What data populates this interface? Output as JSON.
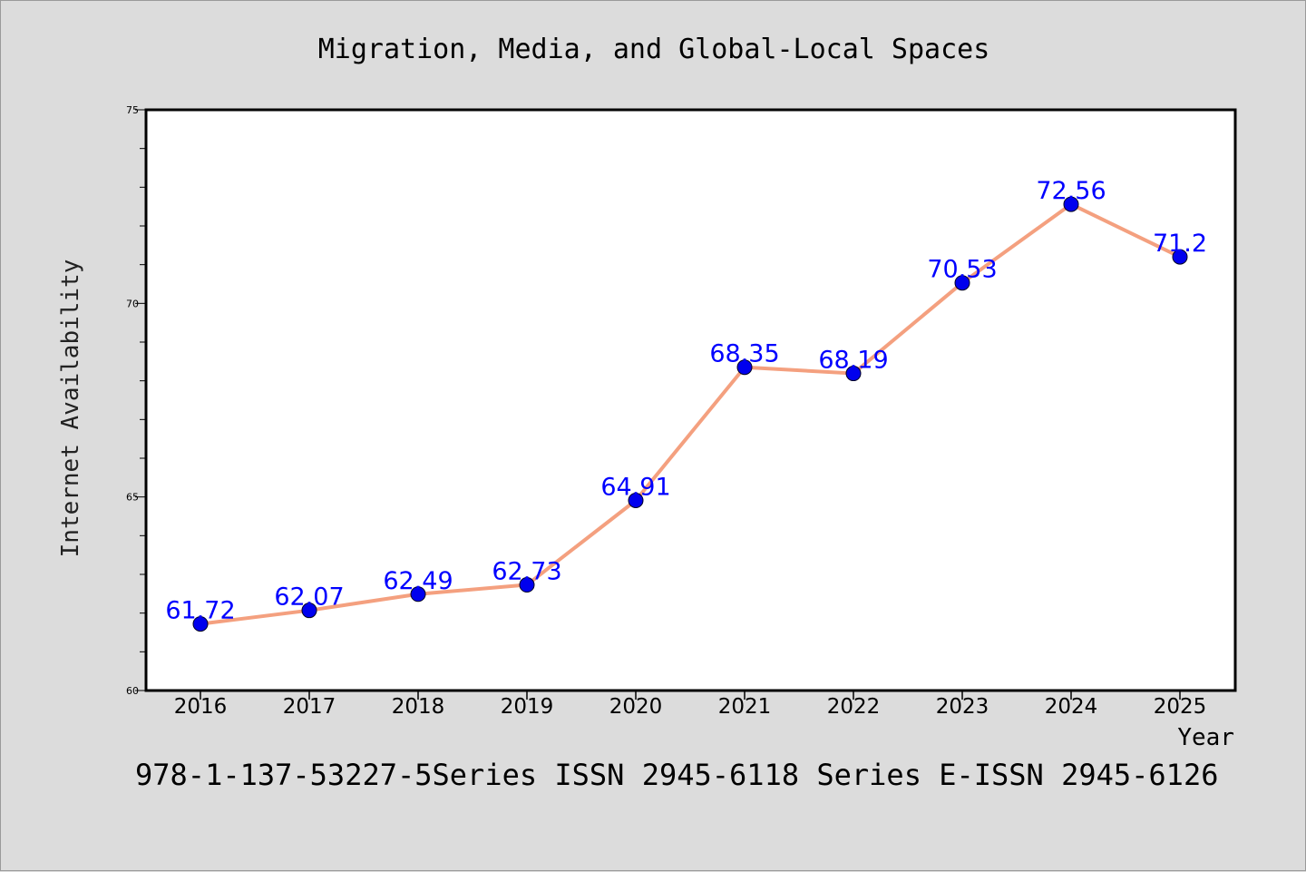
{
  "chart_data": {
    "type": "line",
    "title": "Migration, Media, and Global-Local Spaces",
    "xlabel": "Year",
    "ylabel": "Internet Availability",
    "categories": [
      "2016",
      "2017",
      "2018",
      "2019",
      "2020",
      "2021",
      "2022",
      "2023",
      "2024",
      "2025"
    ],
    "series": [
      {
        "values": [
          61.72,
          62.07,
          62.49,
          62.73,
          64.91,
          68.35,
          68.19,
          70.53,
          72.56,
          71.2
        ],
        "labels": [
          "61.72",
          "62.07",
          "62.49",
          "62.73",
          "64.91",
          "68.35",
          "68.19",
          "70.53",
          "72.56",
          "71.2"
        ],
        "line_color": "#f4a07f",
        "marker_color": "#0000ee",
        "label_color": "#0000ff"
      }
    ],
    "ylim": [
      60,
      75
    ],
    "yticks": [
      "60",
      "65",
      "70",
      "75"
    ],
    "grid": false,
    "legend": "none"
  },
  "footer": {
    "text": "978-1-137-53227-5Series ISSN 2945-6118 Series E-ISSN 2945-6126"
  },
  "colors": {
    "background": "#dcdcdc",
    "plot_background": "#ffffff",
    "axis": "#000000"
  }
}
